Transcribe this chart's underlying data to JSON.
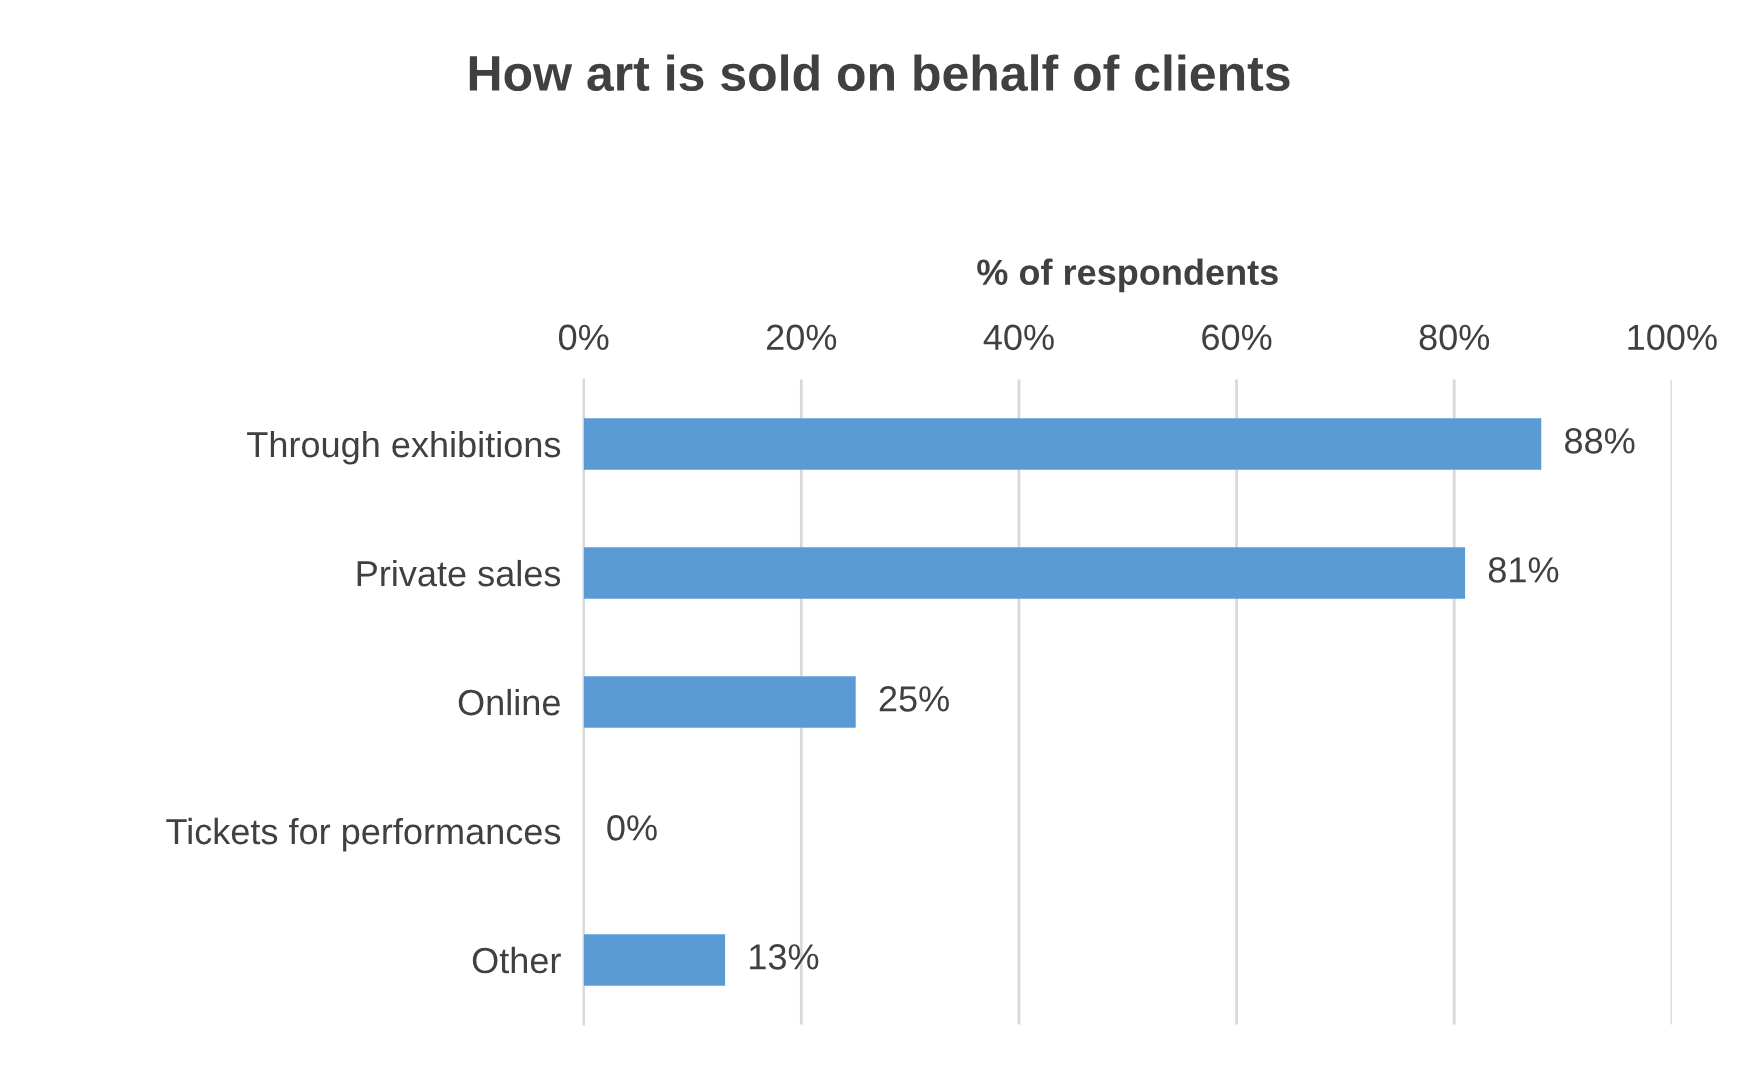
{
  "chart_data": {
    "type": "bar",
    "orientation": "horizontal",
    "title": "How art is sold on behalf of clients",
    "xlabel": "% of respondents",
    "categories": [
      "Through exhibitions",
      "Private sales",
      "Online",
      "Tickets for performances",
      "Other"
    ],
    "values": [
      88,
      81,
      25,
      0,
      13
    ],
    "color": "#5b9bd5",
    "value_labels": [
      "88%",
      "81%",
      "25%",
      "0%",
      "13%"
    ],
    "xlim": [
      0,
      100
    ],
    "xticks": [
      {
        "value": 0,
        "label": "0%"
      },
      {
        "value": 20,
        "label": "20%"
      },
      {
        "value": 40,
        "label": "40%"
      },
      {
        "value": 60,
        "label": "60%"
      },
      {
        "value": 80,
        "label": "80%"
      },
      {
        "value": 100,
        "label": "100%"
      }
    ],
    "grid": "x",
    "legend": false
  }
}
